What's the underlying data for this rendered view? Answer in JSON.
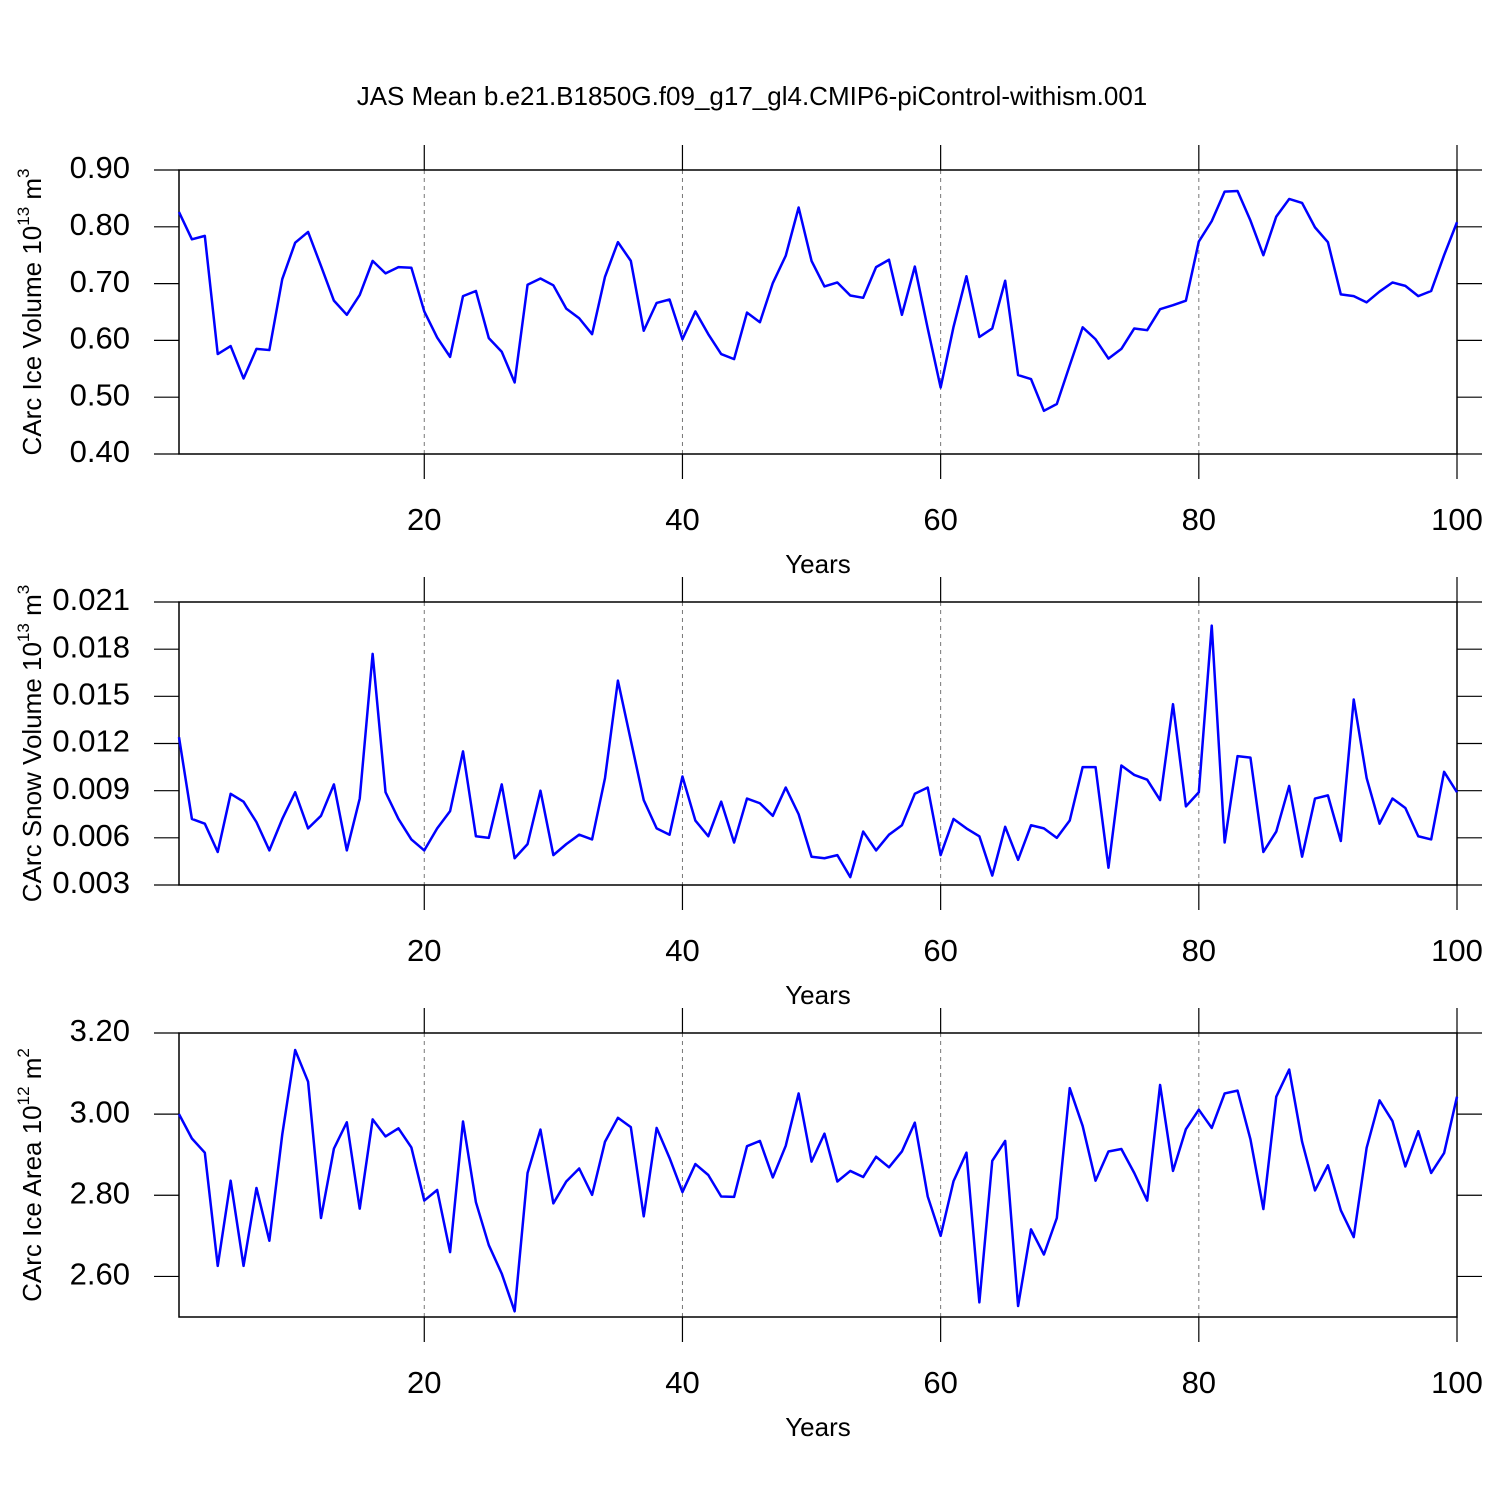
{
  "chart_data": [
    {
      "type": "line",
      "title": "JAS Mean b.e21.B1850G.f09_g17_gl4.CMIP6-piControl-withism.001",
      "xlabel": "Years",
      "ylabel": [
        "CArc Ice Volume 10",
        "13",
        " m",
        "3"
      ],
      "color": "#0000ff",
      "xlim": [
        1,
        100
      ],
      "xticks": [
        20,
        40,
        60,
        80,
        100
      ],
      "grid_x": true,
      "ylim": [
        0.4,
        0.9
      ],
      "yticks": [
        {
          "value": 0.4,
          "label": "0.40"
        },
        {
          "value": 0.5,
          "label": "0.50"
        },
        {
          "value": 0.6,
          "label": "0.60"
        },
        {
          "value": 0.7,
          "label": "0.70"
        },
        {
          "value": 0.8,
          "label": "0.80"
        },
        {
          "value": 0.9,
          "label": "0.90"
        }
      ],
      "x": [
        1,
        2,
        3,
        4,
        5,
        6,
        7,
        8,
        9,
        10,
        11,
        12,
        13,
        14,
        15,
        16,
        17,
        18,
        19,
        20,
        21,
        22,
        23,
        24,
        25,
        26,
        27,
        28,
        29,
        30,
        31,
        32,
        33,
        34,
        35,
        36,
        37,
        38,
        39,
        40,
        41,
        42,
        43,
        44,
        45,
        46,
        47,
        48,
        49,
        50,
        51,
        52,
        53,
        54,
        55,
        56,
        57,
        58,
        59,
        60,
        61,
        62,
        63,
        64,
        65,
        66,
        67,
        68,
        69,
        70,
        71,
        72,
        73,
        74,
        75,
        76,
        77,
        78,
        79,
        80,
        81,
        82,
        83,
        84,
        85,
        86,
        87,
        88,
        89,
        90,
        91,
        92,
        93,
        94,
        95,
        96,
        97,
        98,
        99,
        100
      ],
      "values": [
        0.826,
        0.778,
        0.784,
        0.576,
        0.59,
        0.533,
        0.585,
        0.583,
        0.708,
        0.772,
        0.791,
        0.731,
        0.67,
        0.645,
        0.68,
        0.74,
        0.718,
        0.729,
        0.728,
        0.651,
        0.605,
        0.571,
        0.678,
        0.687,
        0.604,
        0.58,
        0.526,
        0.698,
        0.709,
        0.697,
        0.656,
        0.639,
        0.611,
        0.712,
        0.773,
        0.74,
        0.617,
        0.666,
        0.672,
        0.602,
        0.651,
        0.611,
        0.576,
        0.567,
        0.649,
        0.632,
        0.701,
        0.749,
        0.834,
        0.74,
        0.695,
        0.702,
        0.679,
        0.675,
        0.729,
        0.742,
        0.645,
        0.73,
        0.621,
        0.517,
        0.624,
        0.713,
        0.606,
        0.621,
        0.705,
        0.539,
        0.532,
        0.476,
        0.488,
        0.556,
        0.623,
        0.602,
        0.568,
        0.585,
        0.621,
        0.618,
        0.655,
        0.662,
        0.67,
        0.774,
        0.81,
        0.862,
        0.863,
        0.811,
        0.75,
        0.818,
        0.849,
        0.842,
        0.799,
        0.773,
        0.681,
        0.678,
        0.667,
        0.686,
        0.702,
        0.696,
        0.678,
        0.687,
        0.75,
        0.808
      ]
    },
    {
      "type": "line",
      "xlabel": "Years",
      "ylabel": [
        "CArc Snow Volume 10",
        "13",
        " m",
        "3"
      ],
      "color": "#0000ff",
      "xlim": [
        1,
        100
      ],
      "xticks": [
        20,
        40,
        60,
        80,
        100
      ],
      "grid_x": true,
      "ylim": [
        0.003,
        0.021
      ],
      "yticks": [
        0.003,
        0.006,
        0.009,
        0.012,
        0.015,
        0.018,
        0.021
      ],
      "x": [
        1,
        2,
        3,
        4,
        5,
        6,
        7,
        8,
        9,
        10,
        11,
        12,
        13,
        14,
        15,
        16,
        17,
        18,
        19,
        20,
        21,
        22,
        23,
        24,
        25,
        26,
        27,
        28,
        29,
        30,
        31,
        32,
        33,
        34,
        35,
        36,
        37,
        38,
        39,
        40,
        41,
        42,
        43,
        44,
        45,
        46,
        47,
        48,
        49,
        50,
        51,
        52,
        53,
        54,
        55,
        56,
        57,
        58,
        59,
        60,
        61,
        62,
        63,
        64,
        65,
        66,
        67,
        68,
        69,
        70,
        71,
        72,
        73,
        74,
        75,
        76,
        77,
        78,
        79,
        80,
        81,
        82,
        83,
        84,
        85,
        86,
        87,
        88,
        89,
        90,
        91,
        92,
        93,
        94,
        95,
        96,
        97,
        98,
        99,
        100
      ],
      "values": [
        0.0124,
        0.0072,
        0.0069,
        0.0051,
        0.0088,
        0.0083,
        0.007,
        0.0052,
        0.0072,
        0.0089,
        0.0066,
        0.0074,
        0.0094,
        0.0052,
        0.0085,
        0.0177,
        0.0089,
        0.0072,
        0.0059,
        0.0052,
        0.0066,
        0.0077,
        0.0115,
        0.0061,
        0.006,
        0.0094,
        0.0047,
        0.0056,
        0.009,
        0.0049,
        0.0056,
        0.0062,
        0.0059,
        0.0098,
        0.016,
        0.0122,
        0.0084,
        0.0066,
        0.0062,
        0.0099,
        0.0071,
        0.0061,
        0.0083,
        0.0057,
        0.0085,
        0.0082,
        0.0074,
        0.0092,
        0.0075,
        0.0048,
        0.0047,
        0.0049,
        0.0035,
        0.0064,
        0.0052,
        0.0062,
        0.0068,
        0.0088,
        0.0092,
        0.0049,
        0.0072,
        0.0066,
        0.0061,
        0.0036,
        0.0067,
        0.0046,
        0.0068,
        0.0066,
        0.006,
        0.0071,
        0.0105,
        0.0105,
        0.0041,
        0.0106,
        0.01,
        0.0097,
        0.0084,
        0.0145,
        0.008,
        0.0089,
        0.0195,
        0.0057,
        0.0112,
        0.0111,
        0.0051,
        0.0064,
        0.0093,
        0.0048,
        0.0085,
        0.0087,
        0.0058,
        0.0148,
        0.0098,
        0.0069,
        0.0085,
        0.0079,
        0.0061,
        0.0059,
        0.0102,
        0.0089
      ]
    },
    {
      "type": "line",
      "xlabel": "Years",
      "ylabel": [
        "CArc Ice Area 10",
        "12",
        " m",
        "2"
      ],
      "color": "#0000ff",
      "xlim": [
        1,
        100
      ],
      "xticks": [
        20,
        40,
        60,
        80,
        100
      ],
      "grid_x": true,
      "ylim": [
        2.5,
        3.2
      ],
      "yticks": [
        {
          "value": 2.6,
          "label": "2.60"
        },
        {
          "value": 2.8,
          "label": "2.80"
        },
        {
          "value": 3.0,
          "label": "3.00"
        },
        {
          "value": 3.2,
          "label": "3.20"
        }
      ],
      "x": [
        1,
        2,
        3,
        4,
        5,
        6,
        7,
        8,
        9,
        10,
        11,
        12,
        13,
        14,
        15,
        16,
        17,
        18,
        19,
        20,
        21,
        22,
        23,
        24,
        25,
        26,
        27,
        28,
        29,
        30,
        31,
        32,
        33,
        34,
        35,
        36,
        37,
        38,
        39,
        40,
        41,
        42,
        43,
        44,
        45,
        46,
        47,
        48,
        49,
        50,
        51,
        52,
        53,
        54,
        55,
        56,
        57,
        58,
        59,
        60,
        61,
        62,
        63,
        64,
        65,
        66,
        67,
        68,
        69,
        70,
        71,
        72,
        73,
        74,
        75,
        76,
        77,
        78,
        79,
        80,
        81,
        82,
        83,
        84,
        85,
        86,
        87,
        88,
        89,
        90,
        91,
        92,
        93,
        94,
        95,
        96,
        97,
        98,
        99,
        100
      ],
      "values": [
        3.0,
        2.94,
        2.905,
        2.626,
        2.836,
        2.626,
        2.818,
        2.688,
        2.95,
        3.158,
        3.08,
        2.744,
        2.915,
        2.98,
        2.767,
        2.987,
        2.945,
        2.965,
        2.918,
        2.787,
        2.813,
        2.66,
        2.982,
        2.783,
        2.677,
        2.607,
        2.514,
        2.855,
        2.962,
        2.78,
        2.834,
        2.866,
        2.801,
        2.932,
        2.991,
        2.968,
        2.748,
        2.966,
        2.892,
        2.808,
        2.877,
        2.85,
        2.797,
        2.796,
        2.921,
        2.934,
        2.844,
        2.922,
        3.051,
        2.883,
        2.952,
        2.834,
        2.86,
        2.845,
        2.895,
        2.869,
        2.908,
        2.979,
        2.797,
        2.7,
        2.835,
        2.905,
        2.536,
        2.885,
        2.934,
        2.527,
        2.716,
        2.654,
        2.744,
        3.064,
        2.971,
        2.836,
        2.908,
        2.914,
        2.855,
        2.787,
        3.072,
        2.86,
        2.963,
        3.011,
        2.966,
        3.051,
        3.058,
        2.938,
        2.766,
        3.043,
        3.11,
        2.932,
        2.812,
        2.874,
        2.763,
        2.697,
        2.917,
        3.034,
        2.983,
        2.871,
        2.958,
        2.855,
        2.904,
        3.043
      ]
    }
  ]
}
